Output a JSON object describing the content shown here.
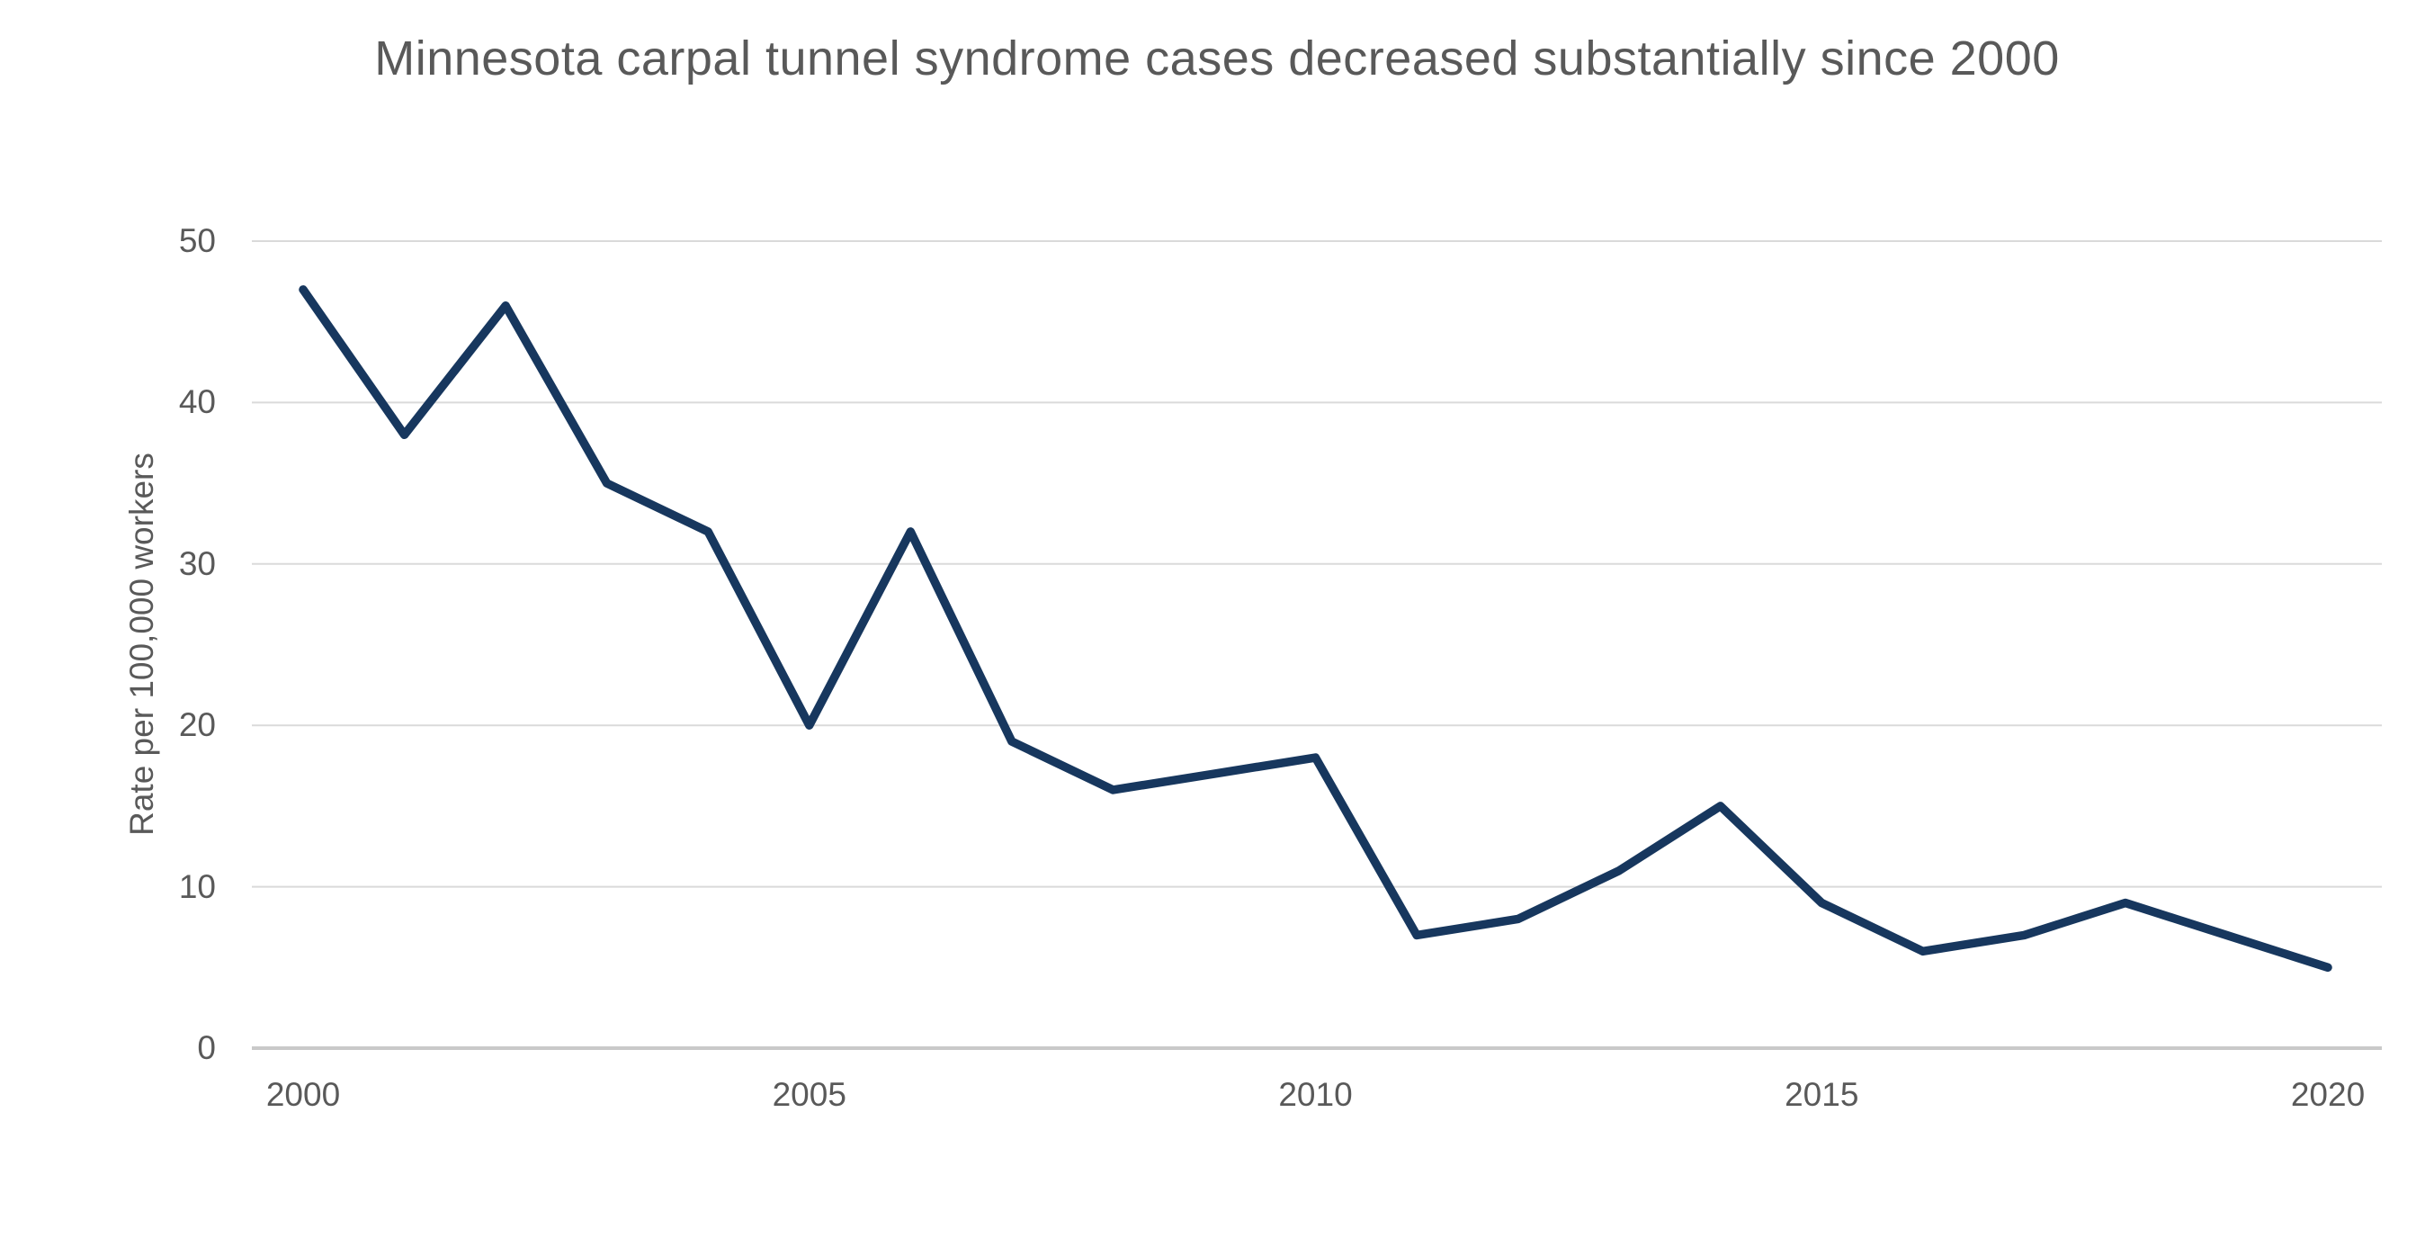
{
  "chart_data": {
    "type": "line",
    "title": "Minnesota carpal tunnel syndrome cases decreased substantially since 2000",
    "xlabel": "",
    "ylabel": "Rate per 100,000 workers",
    "x": [
      2000,
      2001,
      2002,
      2003,
      2004,
      2005,
      2006,
      2007,
      2008,
      2009,
      2010,
      2011,
      2012,
      2013,
      2014,
      2015,
      2016,
      2017,
      2018,
      2019,
      2020
    ],
    "values": [
      47,
      38,
      46,
      35,
      32,
      20,
      32,
      19,
      16,
      17,
      18,
      7,
      8,
      11,
      15,
      9,
      6,
      7,
      9,
      7,
      5
    ],
    "ylim": [
      0,
      50
    ],
    "y_ticks": [
      0,
      10,
      20,
      30,
      40,
      50
    ],
    "x_ticks": [
      2000,
      2005,
      2010,
      2015,
      2020
    ],
    "grid": "horizontal",
    "legend": "none",
    "colors": {
      "line": "#17375e",
      "gridline": "#dadada",
      "axis_line": "#c9c9c9",
      "text": "#595959",
      "background": "#ffffff"
    }
  }
}
